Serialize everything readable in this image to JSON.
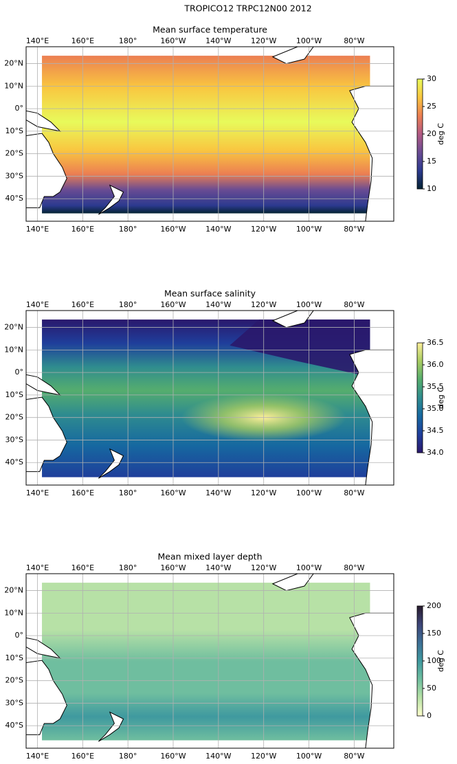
{
  "title": "TROPICO12 TRPC12N00 2012",
  "chart_data": [
    {
      "type": "map",
      "title": "Mean surface temperature",
      "xlim": [
        135,
        297.5
      ],
      "ylim": [
        -50,
        27.5
      ],
      "xticks": [
        {
          "value": 140,
          "label": "140°E"
        },
        {
          "value": 160,
          "label": "160°E"
        },
        {
          "value": 180,
          "label": "180°"
        },
        {
          "value": 200,
          "label": "160°W"
        },
        {
          "value": 220,
          "label": "140°W"
        },
        {
          "value": 240,
          "label": "120°W"
        },
        {
          "value": 260,
          "label": "100°W"
        },
        {
          "value": 280,
          "label": "80°W"
        }
      ],
      "yticks": [
        {
          "value": 20,
          "label": "20°N"
        },
        {
          "value": 10,
          "label": "10°N"
        },
        {
          "value": 0,
          "label": "0°"
        },
        {
          "value": -10,
          "label": "10°S"
        },
        {
          "value": -20,
          "label": "20°S"
        },
        {
          "value": -30,
          "label": "30°S"
        },
        {
          "value": -40,
          "label": "40°S"
        }
      ],
      "grid": true,
      "colorbar": {
        "label": "deg C",
        "lim": [
          10,
          30
        ],
        "ticks": [
          10,
          15,
          20,
          25,
          30
        ],
        "colors": [
          "#042333",
          "#2c3a8f",
          "#6a4c93",
          "#b25a84",
          "#ec7f52",
          "#f9c640",
          "#e8fa5b"
        ]
      }
    },
    {
      "type": "map",
      "title": "Mean surface salinity",
      "xlim": [
        135,
        297.5
      ],
      "ylim": [
        -50,
        27.5
      ],
      "xticks": [
        {
          "value": 140,
          "label": "140°E"
        },
        {
          "value": 160,
          "label": "160°E"
        },
        {
          "value": 180,
          "label": "180°"
        },
        {
          "value": 200,
          "label": "160°W"
        },
        {
          "value": 220,
          "label": "140°W"
        },
        {
          "value": 240,
          "label": "120°W"
        },
        {
          "value": 260,
          "label": "100°W"
        },
        {
          "value": 280,
          "label": "80°W"
        }
      ],
      "yticks": [
        {
          "value": 20,
          "label": "20°N"
        },
        {
          "value": 10,
          "label": "10°N"
        },
        {
          "value": 0,
          "label": "0°"
        },
        {
          "value": -10,
          "label": "10°S"
        },
        {
          "value": -20,
          "label": "20°S"
        },
        {
          "value": -30,
          "label": "30°S"
        },
        {
          "value": -40,
          "label": "40°S"
        }
      ],
      "grid": true,
      "colorbar": {
        "label": "deg C",
        "lim": [
          34,
          36.5
        ],
        "ticks": [
          {
            "value": 34,
            "label": "34.0"
          },
          34.5,
          {
            "value": 35,
            "label": "35.0"
          },
          35.5,
          {
            "value": 36,
            "label": "36.0"
          },
          36.5
        ],
        "colors": [
          "#2a186c",
          "#1f3e9b",
          "#1668a0",
          "#2f8c8f",
          "#55ad6e",
          "#a8cc61",
          "#fdef9a"
        ]
      }
    },
    {
      "type": "map",
      "title": "Mean mixed layer depth",
      "xlim": [
        135,
        297.5
      ],
      "ylim": [
        -50,
        27.5
      ],
      "xticks": [
        {
          "value": 140,
          "label": "140°E"
        },
        {
          "value": 160,
          "label": "160°E"
        },
        {
          "value": 180,
          "label": "180°"
        },
        {
          "value": 200,
          "label": "160°W"
        },
        {
          "value": 220,
          "label": "140°W"
        },
        {
          "value": 240,
          "label": "120°W"
        },
        {
          "value": 260,
          "label": "100°W"
        },
        {
          "value": 280,
          "label": "80°W"
        }
      ],
      "yticks": [
        {
          "value": 20,
          "label": "20°N"
        },
        {
          "value": 10,
          "label": "10°N"
        },
        {
          "value": 0,
          "label": "0°"
        },
        {
          "value": -10,
          "label": "10°S"
        },
        {
          "value": -20,
          "label": "20°S"
        },
        {
          "value": -30,
          "label": "30°S"
        },
        {
          "value": -40,
          "label": "40°S"
        }
      ],
      "grid": true,
      "colorbar": {
        "label": "deg C",
        "lim": [
          0,
          200
        ],
        "ticks": [
          0,
          50,
          100,
          150,
          200
        ],
        "colors": [
          "#fdfecc",
          "#b7e1a6",
          "#6fbe9f",
          "#3f999f",
          "#3d6f95",
          "#3d4578",
          "#281a2c"
        ]
      }
    }
  ]
}
